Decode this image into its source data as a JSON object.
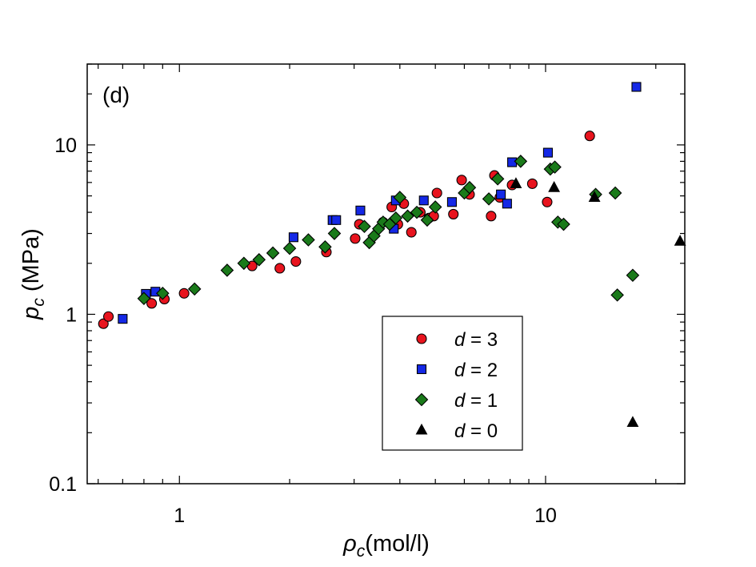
{
  "chart_data": {
    "type": "scatter",
    "panel_label": "(d)",
    "xscale": "log",
    "yscale": "log",
    "xlim": [
      0.56,
      24
    ],
    "ylim": [
      0.1,
      30
    ],
    "xlabel": {
      "symbol": "ρ",
      "subscript": "c",
      "rest": "(mol/l)"
    },
    "ylabel": {
      "symbol": "p",
      "subscript": "c",
      "rest": " (MPa)"
    },
    "x_ticks": [
      {
        "value": 1,
        "label": "1"
      },
      {
        "value": 10,
        "label": "10"
      }
    ],
    "y_ticks": [
      {
        "value": 0.1,
        "label": "0.1"
      },
      {
        "value": 1,
        "label": "1"
      },
      {
        "value": 10,
        "label": "10"
      }
    ],
    "legend_position": "bottom-center",
    "series": [
      {
        "name": "d = 3",
        "var": "d",
        "eq": " = 3",
        "marker": "circle",
        "color": "#e8141e",
        "x": [
          0.62,
          0.64,
          0.84,
          0.91,
          1.03,
          1.58,
          1.88,
          2.08,
          2.52,
          3.02,
          3.1,
          3.6,
          3.8,
          3.95,
          4.1,
          4.3,
          4.55,
          4.8,
          4.95,
          5.05,
          5.6,
          5.9,
          6.05,
          6.2,
          7.1,
          7.25,
          7.5,
          8.1,
          9.2,
          10.1,
          13.2
        ],
        "y": [
          0.88,
          0.97,
          1.16,
          1.23,
          1.33,
          1.93,
          1.87,
          2.05,
          2.33,
          2.8,
          3.4,
          3.5,
          4.3,
          3.4,
          4.5,
          3.05,
          4.0,
          3.7,
          3.8,
          5.2,
          3.9,
          6.2,
          5.2,
          5.1,
          3.8,
          6.6,
          4.9,
          5.8,
          5.9,
          4.6,
          11.3
        ]
      },
      {
        "name": "d = 2",
        "var": "d",
        "eq": " = 2",
        "marker": "square",
        "color": "#1428e6",
        "x": [
          0.7,
          0.81,
          0.86,
          2.05,
          2.62,
          2.68,
          3.12,
          3.85,
          3.9,
          4.65,
          5.55,
          7.55,
          7.85,
          8.1,
          10.15,
          17.7
        ],
        "y": [
          0.94,
          1.32,
          1.36,
          2.85,
          3.6,
          3.6,
          4.1,
          3.2,
          4.7,
          4.7,
          4.6,
          5.1,
          4.5,
          7.9,
          9.0,
          22.0
        ]
      },
      {
        "name": "d = 1",
        "var": "d",
        "eq": " = 1",
        "marker": "diamond",
        "color": "#1a7a1a",
        "x": [
          0.8,
          0.9,
          1.1,
          1.35,
          1.5,
          1.65,
          1.8,
          2.0,
          2.25,
          2.5,
          2.65,
          3.2,
          3.3,
          3.4,
          3.5,
          3.6,
          3.75,
          3.9,
          4.0,
          4.2,
          4.45,
          4.75,
          5.0,
          6.0,
          6.2,
          7.0,
          7.4,
          8.55,
          10.3,
          10.6,
          10.8,
          11.2,
          13.7,
          15.5,
          15.7,
          17.3
        ],
        "y": [
          1.24,
          1.33,
          1.41,
          1.82,
          2.0,
          2.1,
          2.3,
          2.45,
          2.75,
          2.5,
          3.0,
          3.3,
          2.65,
          2.9,
          3.2,
          3.5,
          3.4,
          3.7,
          4.9,
          3.8,
          4.0,
          3.6,
          4.3,
          5.2,
          5.6,
          4.8,
          6.3,
          8.0,
          7.2,
          7.4,
          3.5,
          3.4,
          5.1,
          5.2,
          1.3,
          1.7
        ]
      },
      {
        "name": "d = 0",
        "var": "d",
        "eq": " = 0",
        "marker": "triangle",
        "color": "#000000",
        "x": [
          8.3,
          10.55,
          13.6,
          17.3,
          23.3
        ],
        "y": [
          5.9,
          5.6,
          4.9,
          0.23,
          2.7
        ]
      }
    ]
  }
}
